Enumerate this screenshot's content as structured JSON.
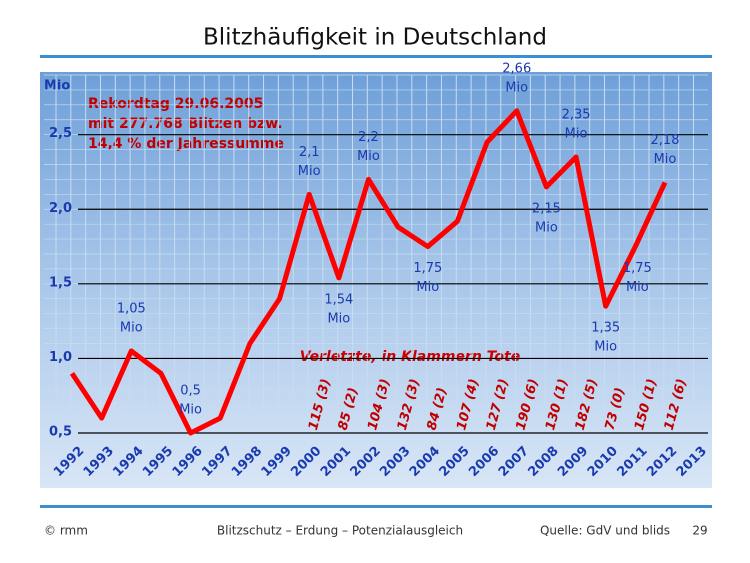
{
  "chart_data": {
    "type": "line",
    "title": "Blitzhäufigkeit  in Deutschland",
    "y_unit": "Mio",
    "categories": [
      "1992",
      "1993",
      "1994",
      "1995",
      "1996",
      "1997",
      "1998",
      "1999",
      "2000",
      "2001",
      "2002",
      "2003",
      "2004",
      "2005",
      "2006",
      "2007",
      "2008",
      "2009",
      "2010",
      "2011",
      "2012",
      "2013"
    ],
    "series": [
      {
        "name": "Blitzhäufigkeit",
        "color": "#ff0000",
        "values": [
          0.9,
          0.6,
          1.05,
          0.9,
          0.5,
          0.6,
          1.1,
          1.4,
          2.1,
          1.54,
          2.2,
          1.88,
          1.75,
          1.92,
          2.45,
          2.66,
          2.15,
          2.35,
          1.35,
          1.75,
          2.18,
          null
        ],
        "value_labels": [
          null,
          null,
          "1,05",
          null,
          "0,5",
          null,
          null,
          null,
          "2,1",
          "1,54",
          "2,2",
          null,
          "1,75",
          null,
          null,
          "2,66",
          "2,15",
          "2,35",
          "1,35",
          "1,75",
          "2,18",
          null
        ],
        "value_label_unit": "Mio"
      }
    ],
    "ylim": [
      0.5,
      2.9
    ],
    "yticks": [
      {
        "value": 0.5,
        "label": "0,5"
      },
      {
        "value": 1.0,
        "label": "1,0"
      },
      {
        "value": 1.5,
        "label": "1,5"
      },
      {
        "value": 2.0,
        "label": "2,0"
      },
      {
        "value": 2.5,
        "label": "2,5"
      }
    ],
    "grid": true,
    "annotation_lines": [
      "Rekordtag 29.06.2005",
      "mit 277.768 Blitzen bzw.",
      "14,4 % der Jahressumme"
    ],
    "injury_title": "Verletzte, in Klammern Tote",
    "injury_labels": [
      null,
      null,
      null,
      null,
      null,
      null,
      null,
      null,
      "115 (3)",
      "85 (2)",
      "104 (3)",
      "132 (3)",
      "84 (2)",
      "107 (4)",
      "127 (2)",
      "190 (6)",
      "130 (1)",
      "182 (5)",
      "73 (0)",
      "150 (1)",
      "112 (6)",
      null
    ],
    "footer": {
      "left": "© rmm",
      "center": "Blitzschutz – Erdung – Potenzialausgleich",
      "source": "Quelle: GdV und blids",
      "page": "29"
    }
  }
}
